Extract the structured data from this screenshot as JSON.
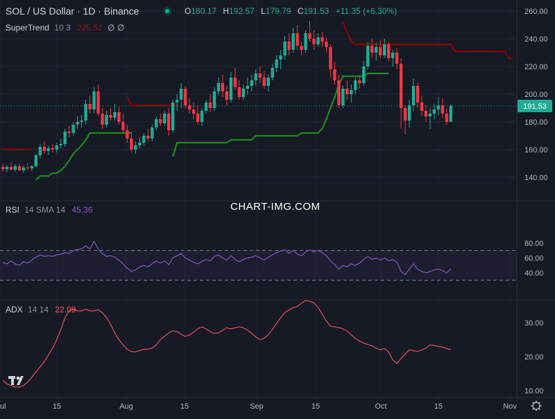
{
  "header": {
    "symbol_line": "SOL / US Dollar · 1D · Binance",
    "ohlc": [
      {
        "k": "O",
        "v": "180.17"
      },
      {
        "k": "H",
        "v": "192.57"
      },
      {
        "k": "L",
        "v": "179.79"
      },
      {
        "k": "C",
        "v": "191.53"
      }
    ],
    "change": "+11.35 (+6.30%)"
  },
  "indicators": {
    "supertrend": {
      "name": "SuperTrend",
      "params": "10 3",
      "value": "225.52",
      "extra": "∅ ∅"
    },
    "rsi": {
      "name": "RSI",
      "params": "14 SMA 14",
      "value": "45.36"
    },
    "adx": {
      "name": "ADX",
      "params": "14 14",
      "value": "22.09"
    }
  },
  "watermark": "CHART-IMG.COM",
  "colors": {
    "up": "#22ab94",
    "down": "#f23645",
    "st_up": "#1b8a1b",
    "st_down": "#8b0000",
    "rsi": "#7e57c2",
    "adx": "#f7525f",
    "price_tag": "#22ab94"
  },
  "chart_data": [
    {
      "type": "candlestick",
      "title": "SOL / US Dollar · 1D · Binance",
      "ylim": [
        128,
        266
      ],
      "y_ticks": [
        "260.00",
        "240.00",
        "220.00",
        "200.00",
        "180.00",
        "160.00",
        "140.00"
      ],
      "x_ticks": [
        "ul",
        "15",
        "Aug",
        "15",
        "Sep",
        "15",
        "Oct",
        "15",
        "Nov"
      ],
      "last_price_label": "191.53",
      "candles_ohlc": [
        [
          147.5,
          150.0,
          144.0,
          146.0
        ],
        [
          146.0,
          149.0,
          143.5,
          147.5
        ],
        [
          147.5,
          151.0,
          145.0,
          145.5
        ],
        [
          145.5,
          149.5,
          144.0,
          148.0
        ],
        [
          148.0,
          150.0,
          144.5,
          145.0
        ],
        [
          145.0,
          148.5,
          143.0,
          147.0
        ],
        [
          147.0,
          150.5,
          145.0,
          146.5
        ],
        [
          146.5,
          149.0,
          144.5,
          148.0
        ],
        [
          148.0,
          157.0,
          147.0,
          156.0
        ],
        [
          156.0,
          164.0,
          154.0,
          162.0
        ],
        [
          162.0,
          166.0,
          157.0,
          159.0
        ],
        [
          159.0,
          163.0,
          156.0,
          161.0
        ],
        [
          161.0,
          164.0,
          158.0,
          160.0
        ],
        [
          160.0,
          165.0,
          158.0,
          163.0
        ],
        [
          163.0,
          168.0,
          161.0,
          164.0
        ],
        [
          164.0,
          175.0,
          162.0,
          173.0
        ],
        [
          173.0,
          177.0,
          169.0,
          172.0
        ],
        [
          172.0,
          180.0,
          170.0,
          178.0
        ],
        [
          178.0,
          184.0,
          175.0,
          180.0
        ],
        [
          180.0,
          185.0,
          176.0,
          181.0
        ],
        [
          181.0,
          196.0,
          178.0,
          193.0
        ],
        [
          193.0,
          199.0,
          186.0,
          189.0
        ],
        [
          189.0,
          205.0,
          186.0,
          202.0
        ],
        [
          202.0,
          207.0,
          184.0,
          186.0
        ],
        [
          186.0,
          190.0,
          175.0,
          178.0
        ],
        [
          178.0,
          188.0,
          176.0,
          185.0
        ],
        [
          185.0,
          190.0,
          181.0,
          183.0
        ],
        [
          183.0,
          193.0,
          181.0,
          187.0
        ],
        [
          187.0,
          191.0,
          178.0,
          180.0
        ],
        [
          180.0,
          186.0,
          172.0,
          174.0
        ],
        [
          174.0,
          178.0,
          165.0,
          168.0
        ],
        [
          168.0,
          173.0,
          158.0,
          160.0
        ],
        [
          160.0,
          166.0,
          157.0,
          163.0
        ],
        [
          163.0,
          169.0,
          161.0,
          165.0
        ],
        [
          165.0,
          172.0,
          163.0,
          170.0
        ],
        [
          170.0,
          175.0,
          166.0,
          168.0
        ],
        [
          168.0,
          178.0,
          166.0,
          176.0
        ],
        [
          176.0,
          184.0,
          174.0,
          182.0
        ],
        [
          182.0,
          186.0,
          177.0,
          179.0
        ],
        [
          179.0,
          188.0,
          177.0,
          186.0
        ],
        [
          186.0,
          190.0,
          170.0,
          174.0
        ],
        [
          174.0,
          196.0,
          172.0,
          194.0
        ],
        [
          194.0,
          200.0,
          188.0,
          196.0
        ],
        [
          196.0,
          208.0,
          190.0,
          204.0
        ],
        [
          204.0,
          206.0,
          190.0,
          192.0
        ],
        [
          192.0,
          197.0,
          186.0,
          189.0
        ],
        [
          189.0,
          194.0,
          182.0,
          186.0
        ],
        [
          186.0,
          192.0,
          178.0,
          180.0
        ],
        [
          180.0,
          190.0,
          177.0,
          188.0
        ],
        [
          188.0,
          196.0,
          186.0,
          194.0
        ],
        [
          194.0,
          200.0,
          187.0,
          190.0
        ],
        [
          190.0,
          205.0,
          188.0,
          202.0
        ],
        [
          202.0,
          212.0,
          199.0,
          208.0
        ],
        [
          208.0,
          214.0,
          198.0,
          202.0
        ],
        [
          202.0,
          206.0,
          192.0,
          196.0
        ],
        [
          196.0,
          216.0,
          194.0,
          212.0
        ],
        [
          212.0,
          219.0,
          203.0,
          205.0
        ],
        [
          205.0,
          210.0,
          196.0,
          198.0
        ],
        [
          198.0,
          207.0,
          196.0,
          204.0
        ],
        [
          204.0,
          212.0,
          200.0,
          206.0
        ],
        [
          206.0,
          214.0,
          202.0,
          210.0
        ],
        [
          210.0,
          218.0,
          206.0,
          215.0
        ],
        [
          215.0,
          220.0,
          208.0,
          212.0
        ],
        [
          212.0,
          217.0,
          204.0,
          206.0
        ],
        [
          206.0,
          214.0,
          202.0,
          212.0
        ],
        [
          212.0,
          222.0,
          210.0,
          219.0
        ],
        [
          219.0,
          228.0,
          216.0,
          225.0
        ],
        [
          225.0,
          232.0,
          218.0,
          228.0
        ],
        [
          228.0,
          242.0,
          225.0,
          238.0
        ],
        [
          238.0,
          244.0,
          228.0,
          232.0
        ],
        [
          232.0,
          248.0,
          230.0,
          244.0
        ],
        [
          244.0,
          250.0,
          232.0,
          235.0
        ],
        [
          235.0,
          238.0,
          228.0,
          232.0
        ],
        [
          232.0,
          246.0,
          230.0,
          244.0
        ],
        [
          244.0,
          253.0,
          238.0,
          240.0
        ],
        [
          240.0,
          246.0,
          232.0,
          236.0
        ],
        [
          236.0,
          244.0,
          234.0,
          241.0
        ],
        [
          241.0,
          245.0,
          234.0,
          238.0
        ],
        [
          238.0,
          241.0,
          230.0,
          234.0
        ],
        [
          234.0,
          236.0,
          212.0,
          218.0
        ],
        [
          218.0,
          223.0,
          207.0,
          210.0
        ],
        [
          210.0,
          214.0,
          190.0,
          192.0
        ],
        [
          192.0,
          206.0,
          190.0,
          204.0
        ],
        [
          204.0,
          210.0,
          196.0,
          200.0
        ],
        [
          200.0,
          207.0,
          194.0,
          203.0
        ],
        [
          203.0,
          212.0,
          200.0,
          210.0
        ],
        [
          210.0,
          214.0,
          204.0,
          208.0
        ],
        [
          208.0,
          224.0,
          206.0,
          220.0
        ],
        [
          220.0,
          238.0,
          218.0,
          235.0
        ],
        [
          235.0,
          240.0,
          226.0,
          230.0
        ],
        [
          230.0,
          237.0,
          224.0,
          234.0
        ],
        [
          234.0,
          239.0,
          226.0,
          228.0
        ],
        [
          228.0,
          240.0,
          226.0,
          236.0
        ],
        [
          236.0,
          238.0,
          224.0,
          226.0
        ],
        [
          226.0,
          232.0,
          220.0,
          230.0
        ],
        [
          230.0,
          233.0,
          218.0,
          222.0
        ],
        [
          222.0,
          226.0,
          175.0,
          190.0
        ],
        [
          190.0,
          192.0,
          171.0,
          181.0
        ],
        [
          181.0,
          196.0,
          176.0,
          192.0
        ],
        [
          192.0,
          211.0,
          188.0,
          206.0
        ],
        [
          206.0,
          208.0,
          190.0,
          194.0
        ],
        [
          194.0,
          199.0,
          184.0,
          188.0
        ],
        [
          188.0,
          192.0,
          180.0,
          184.0
        ],
        [
          184.0,
          190.0,
          175.0,
          186.0
        ],
        [
          186.0,
          193.0,
          182.0,
          189.0
        ],
        [
          189.0,
          198.0,
          185.0,
          192.0
        ],
        [
          192.0,
          197.0,
          183.0,
          186.0
        ],
        [
          186.0,
          190.0,
          178.0,
          180.0
        ],
        [
          180.17,
          192.57,
          179.79,
          191.53
        ]
      ],
      "supertrend_down_1": [
        160,
        160,
        160,
        160,
        160,
        160,
        160,
        160
      ],
      "supertrend_up_1": [
        138,
        141,
        141,
        141,
        143,
        143,
        145,
        148,
        152,
        157,
        160,
        163,
        167,
        172,
        172,
        172,
        172,
        172,
        172,
        172,
        172,
        172,
        172,
        172
      ],
      "supertrend_down_2": [
        198,
        192,
        192,
        192,
        192,
        192,
        192,
        192,
        192,
        192,
        192,
        192,
        192
      ],
      "supertrend_up_2": [
        155,
        165,
        165,
        165,
        165,
        165,
        165,
        165,
        165,
        165,
        165,
        165,
        165,
        165,
        167,
        167,
        167,
        167,
        167,
        167,
        170,
        170,
        170,
        170,
        170,
        170,
        170,
        170,
        170,
        170,
        170,
        172,
        172,
        172,
        172,
        172,
        175,
        182,
        190,
        198,
        207,
        213,
        213,
        213,
        213,
        213,
        213,
        215,
        215,
        215,
        215,
        215,
        215
      ],
      "supertrend_down_3": [
        252,
        245,
        238,
        236,
        236,
        236,
        236,
        236,
        236,
        236,
        236,
        236,
        236,
        236,
        236,
        236,
        236,
        236,
        236,
        236,
        236,
        236,
        236,
        236,
        236,
        236,
        236,
        231,
        231,
        231,
        231,
        231,
        231,
        231,
        231,
        231,
        231,
        231,
        231,
        231,
        226,
        225.52
      ]
    },
    {
      "type": "line",
      "series": [
        {
          "name": "RSI",
          "values": [
            54,
            52,
            56,
            52,
            50,
            55,
            53,
            57,
            61,
            64,
            62,
            63,
            62,
            64,
            65,
            67,
            66,
            70,
            71,
            72,
            76,
            72,
            82,
            72,
            66,
            62,
            63,
            61,
            57,
            52,
            46,
            42,
            44,
            48,
            50,
            48,
            52,
            56,
            53,
            56,
            51,
            60,
            63,
            66,
            60,
            57,
            54,
            52,
            55,
            58,
            56,
            62,
            64,
            60,
            57,
            63,
            58,
            55,
            58,
            60,
            61,
            63,
            60,
            57,
            61,
            64,
            67,
            69,
            71,
            66,
            70,
            65,
            63,
            68,
            71,
            68,
            70,
            67,
            63,
            56,
            51,
            45,
            50,
            48,
            52,
            50,
            53,
            58,
            62,
            58,
            60,
            57,
            60,
            56,
            58,
            54,
            42,
            38,
            45,
            52,
            45,
            42,
            40,
            42,
            44,
            45,
            43,
            40,
            45.36
          ]
        }
      ],
      "ylim": [
        28,
        86
      ],
      "y_ticks": [
        "80.00",
        "60.00",
        "40.00"
      ],
      "bands": [
        70,
        30
      ]
    },
    {
      "type": "line",
      "series": [
        {
          "name": "ADX",
          "values": [
            13,
            12,
            11.5,
            11,
            11,
            11.5,
            12.5,
            14,
            15.5,
            17,
            18.5,
            20.5,
            22.5,
            25,
            28,
            31.5,
            33.5,
            34,
            33.5,
            33.5,
            34,
            33.5,
            33.5,
            33.8,
            33,
            31.5,
            29.5,
            27,
            25,
            23.5,
            22.2,
            21.5,
            21.4,
            21.8,
            22.2,
            22.2,
            22.5,
            23.5,
            25,
            26,
            27,
            27.6,
            27.4,
            26.6,
            26,
            26.4,
            27.2,
            28.2,
            28.8,
            28.2,
            27.4,
            26.8,
            27,
            27.8,
            28.5,
            28.2,
            28.5,
            28.8,
            28.5,
            27.8,
            26.9,
            25.8,
            25,
            25.4,
            26.5,
            28,
            29.8,
            31.5,
            33,
            33.8,
            34.4,
            34.8,
            35.8,
            36.6,
            36.3,
            35.9,
            34.5,
            32.5,
            30.5,
            29,
            28.8,
            28.6,
            28.2,
            27.6,
            26.4,
            25.4,
            24.6,
            24,
            23.6,
            23.2,
            22.5,
            22,
            22.4,
            21.4,
            19,
            18,
            19.5,
            20.8,
            22,
            21.8,
            21.5,
            22,
            22.5,
            23.5,
            23.3,
            23,
            22.8,
            22.4,
            22.09
          ]
        }
      ],
      "ylim": [
        8,
        37
      ],
      "y_ticks": [
        "30.00",
        "20.00",
        "10.00"
      ]
    }
  ]
}
